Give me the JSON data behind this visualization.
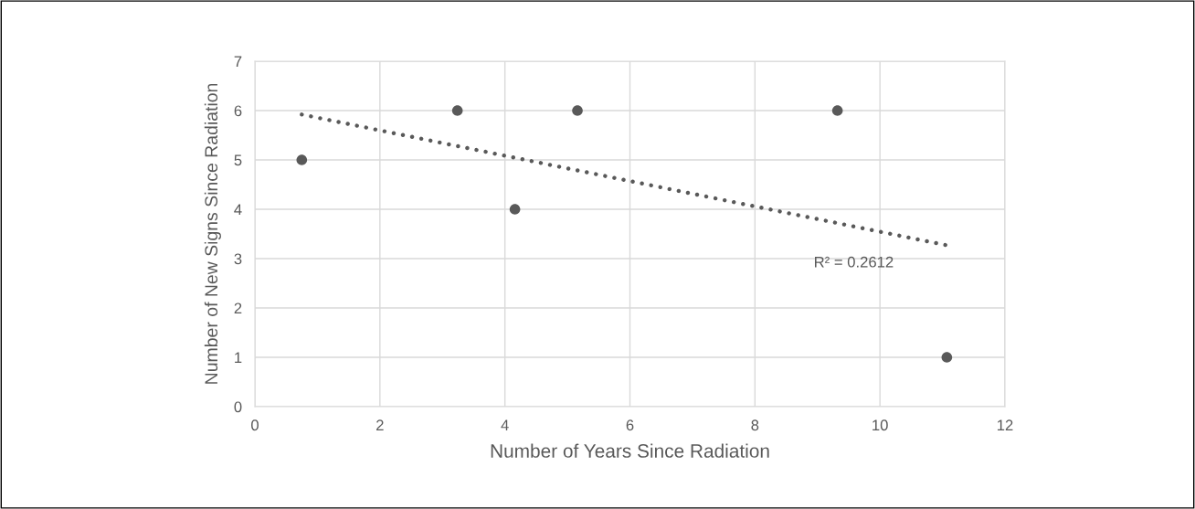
{
  "chart_data": {
    "type": "scatter",
    "xlabel": "Number of Years Since Radiation",
    "ylabel": "Number of New Signs Since Radiation",
    "xlim": [
      0,
      12
    ],
    "xticks": [
      0,
      2,
      4,
      6,
      8,
      10,
      12
    ],
    "ylim": [
      0,
      7
    ],
    "yticks": [
      0,
      1,
      2,
      3,
      4,
      5,
      6,
      7
    ],
    "grid": true,
    "series": [
      {
        "color": "#595959",
        "marker": "circle",
        "x": [
          0.75,
          3.24,
          4.16,
          5.16,
          9.32,
          11.07
        ],
        "values": [
          5,
          6,
          4,
          6,
          6,
          1
        ]
      },
      {
        "type": "line",
        "color": "#595959",
        "line_style": "dotted",
        "marker": "none",
        "x": [
          0.75,
          11.07
        ],
        "values": [
          5.92,
          3.27
        ]
      }
    ],
    "annotations": [
      "R² = 0.2612"
    ]
  }
}
